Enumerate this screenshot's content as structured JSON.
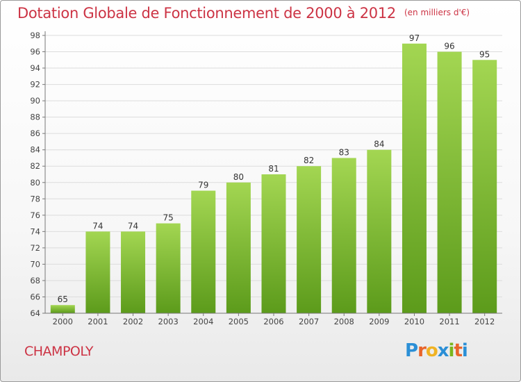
{
  "title": "Dotation Globale de Fonctionnement de 2000 à 2012",
  "unit": "(en milliers d'€)",
  "commune": "CHAMPOLY",
  "logo": {
    "letters": [
      "P",
      "r",
      "o",
      "x",
      "i",
      "t",
      "i"
    ],
    "colors": [
      "#2b8fd6",
      "#e8642a",
      "#f0b323",
      "#2b8fd6",
      "#7ab51d",
      "#e8642a",
      "#2b8fd6"
    ]
  },
  "colors": {
    "bar_light": "#9dd24b",
    "bar_dark": "#5f9e1d",
    "title": "#cc3344",
    "axis": "#777777"
  },
  "chart_data": {
    "type": "bar",
    "title": "Dotation Globale de Fonctionnement de 2000 à 2012",
    "xlabel": "",
    "ylabel": "",
    "categories": [
      "2000",
      "2001",
      "2002",
      "2003",
      "2004",
      "2005",
      "2006",
      "2007",
      "2008",
      "2009",
      "2010",
      "2011",
      "2012"
    ],
    "values": [
      65,
      74,
      74,
      75,
      79,
      80,
      81,
      82,
      83,
      84,
      97,
      96,
      95
    ],
    "ylim": [
      64,
      98
    ],
    "yticks": [
      64,
      66,
      68,
      70,
      72,
      74,
      76,
      78,
      80,
      82,
      84,
      86,
      88,
      90,
      92,
      94,
      96,
      98
    ],
    "grid": true
  }
}
